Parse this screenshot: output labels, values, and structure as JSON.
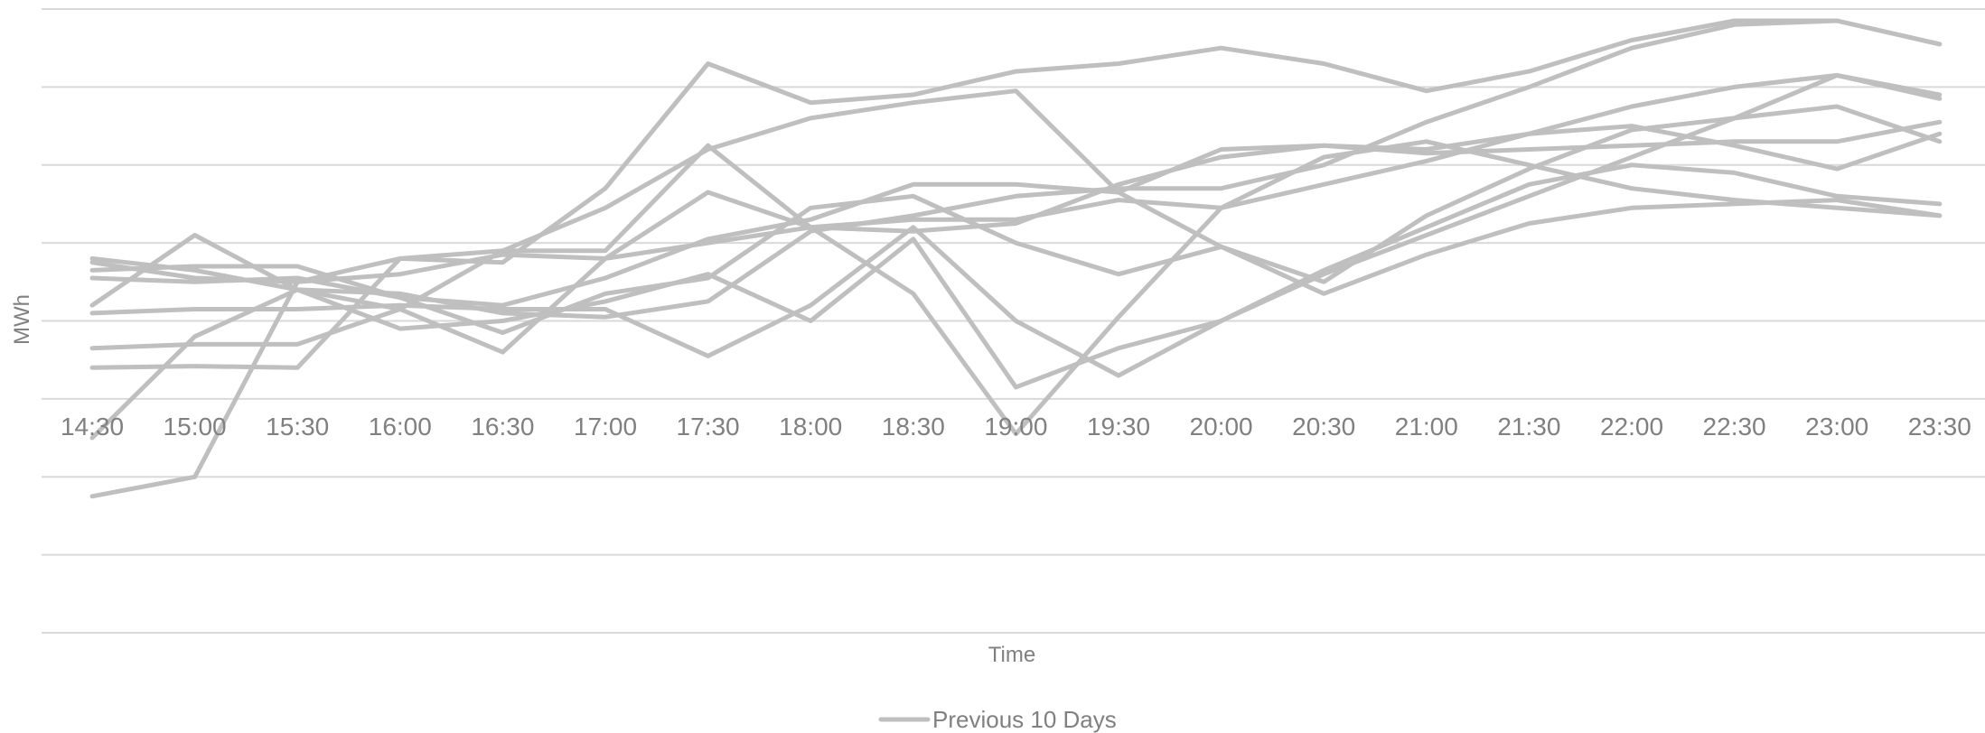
{
  "chart_data": {
    "type": "line",
    "title": "",
    "xlabel": "Time",
    "ylabel": "MWh",
    "grid": true,
    "legend_position": "bottom",
    "legend": [
      {
        "label": "Previous 10 Days",
        "color": "#bfbfbf"
      }
    ],
    "categories": [
      "14:30",
      "15:00",
      "15:30",
      "16:00",
      "16:30",
      "17:00",
      "17:30",
      "18:00",
      "18:30",
      "19:00",
      "19:30",
      "20:00",
      "20:30",
      "21:00",
      "21:30",
      "22:00",
      "22:30",
      "23:00",
      "23:30"
    ],
    "ylim": [
      -4,
      4
    ],
    "gridline_values": [
      -4,
      -3,
      -2,
      -1,
      0,
      1,
      2,
      3,
      4
    ],
    "x_axis_at": -1,
    "series_color": "#bfbfbf",
    "series": [
      {
        "values": [
          0.8,
          0.65,
          0.4,
          0.15,
          -0.4,
          0.8,
          1.65,
          1.2,
          0.35,
          -1.45,
          0.05,
          1.45,
          2.1,
          2.3,
          2.0,
          1.7,
          1.55,
          1.45,
          1.35
        ]
      },
      {
        "values": [
          0.2,
          1.1,
          0.4,
          -0.1,
          0.0,
          0.25,
          0.6,
          0.0,
          1.05,
          -0.85,
          -0.35,
          0.0,
          0.6,
          1.1,
          1.6,
          2.1,
          2.6,
          3.15,
          2.9
        ]
      },
      {
        "values": [
          0.65,
          0.7,
          0.7,
          0.3,
          -0.15,
          0.35,
          0.55,
          1.45,
          1.6,
          1.0,
          0.6,
          0.95,
          0.35,
          0.85,
          1.25,
          1.45,
          1.5,
          1.55,
          1.35
        ]
      },
      {
        "values": [
          -1.5,
          -0.2,
          0.4,
          0.35,
          0.1,
          0.05,
          0.25,
          1.15,
          1.35,
          1.6,
          1.7,
          1.7,
          2.0,
          2.55,
          3.0,
          3.5,
          3.8,
          3.85,
          3.55
        ]
      },
      {
        "values": [
          -2.25,
          -2.0,
          0.5,
          0.8,
          0.9,
          0.9,
          2.25,
          1.2,
          1.15,
          1.25,
          1.75,
          2.1,
          2.25,
          2.2,
          2.4,
          2.5,
          2.25,
          1.95,
          2.4
        ]
      },
      {
        "values": [
          0.1,
          0.15,
          0.15,
          0.2,
          0.15,
          0.15,
          -0.45,
          0.2,
          1.2,
          0.0,
          -0.7,
          0.0,
          0.65,
          1.2,
          1.75,
          2.0,
          1.9,
          1.6,
          1.5
        ]
      },
      {
        "values": [
          0.75,
          0.55,
          0.5,
          0.6,
          0.85,
          0.8,
          1.0,
          1.2,
          1.3,
          1.3,
          1.55,
          1.45,
          1.75,
          2.05,
          2.4,
          2.75,
          3.0,
          3.15,
          2.85
        ]
      },
      {
        "values": [
          0.55,
          0.5,
          0.55,
          0.3,
          0.2,
          0.55,
          1.05,
          1.3,
          1.75,
          1.75,
          1.65,
          2.2,
          2.25,
          2.15,
          2.2,
          2.25,
          2.3,
          2.3,
          2.55
        ]
      },
      {
        "values": [
          -0.35,
          -0.3,
          -0.3,
          0.15,
          0.9,
          1.45,
          2.2,
          2.6,
          2.8,
          2.95,
          1.65,
          0.95,
          0.5,
          1.35,
          1.95,
          2.45,
          2.6,
          2.75,
          2.3
        ]
      },
      {
        "values": [
          -0.6,
          -0.58,
          -0.6,
          0.8,
          0.75,
          1.7,
          3.3,
          2.8,
          2.9,
          3.2,
          3.3,
          3.5,
          3.3,
          2.95,
          3.2,
          3.6,
          3.85,
          3.85,
          3.55
        ]
      }
    ]
  }
}
